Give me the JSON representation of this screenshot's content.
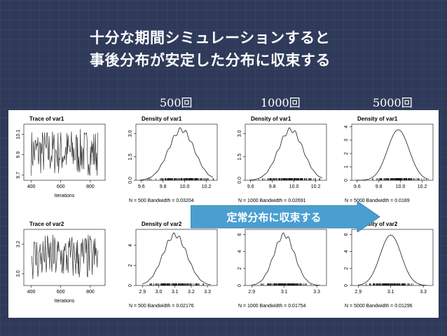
{
  "slide": {
    "title_line1": "十分な期間シミュレーションすると",
    "title_line2": "事後分布が安定した分布に収束する",
    "columns": [
      "500回",
      "1000回",
      "5000回"
    ],
    "arrow_label": "定常分布に収束する",
    "colors": {
      "background": "#2f3a5a",
      "arrow": "#4a9fd0",
      "panel": "#ffffff"
    }
  },
  "chart_data": [
    {
      "type": "line",
      "title": "Trace of var1",
      "xlabel": "Iterations",
      "x_ticks": [
        "400",
        "600",
        "800"
      ],
      "y_ticks": [
        "9.7",
        "9.9",
        "10.1"
      ],
      "xlim": [
        350,
        900
      ],
      "ylim": [
        9.65,
        10.2
      ]
    },
    {
      "type": "line",
      "title": "Density of var1",
      "x_ticks": [
        "9.6",
        "9.8",
        "10.0",
        "10.2"
      ],
      "y_ticks": [
        "0.0",
        "1.5",
        "3.0"
      ],
      "xlim": [
        9.55,
        10.3
      ],
      "ylim": [
        0,
        3.6
      ],
      "mean": 9.97,
      "sd": 0.12,
      "n": 500,
      "caption": "N = 500   Bandwidth = 0.03204"
    },
    {
      "type": "line",
      "title": "Density of var1",
      "x_ticks": [
        "9.6",
        "9.8",
        "10.0",
        "10.2"
      ],
      "y_ticks": [
        "0.0",
        "1.5",
        "3.0"
      ],
      "xlim": [
        9.55,
        10.3
      ],
      "ylim": [
        0,
        3.6
      ],
      "mean": 9.97,
      "sd": 0.115,
      "n": 1000,
      "caption": "N = 1000   Bandwidth = 0.02691"
    },
    {
      "type": "line",
      "title": "Density of var1",
      "x_ticks": [
        "9.6",
        "9.8",
        "10.0",
        "10.2"
      ],
      "y_ticks": [
        "0",
        "1",
        "2",
        "3",
        "4"
      ],
      "xlim": [
        9.55,
        10.3
      ],
      "ylim": [
        0,
        4.2
      ],
      "mean": 9.98,
      "sd": 0.1,
      "n": 5000,
      "caption": "N = 5000   Bandwidth = 0.0189"
    },
    {
      "type": "line",
      "title": "Trace of var2",
      "xlabel": "Iterations",
      "x_ticks": [
        "400",
        "600",
        "800"
      ],
      "y_ticks": [
        "3.0",
        "3.2"
      ],
      "xlim": [
        350,
        900
      ],
      "ylim": [
        2.92,
        3.3
      ]
    },
    {
      "type": "line",
      "title": "Density of var2",
      "x_ticks": [
        "2.9",
        "3.0",
        "3.1",
        "3.2",
        "3.3"
      ],
      "y_ticks": [
        "0",
        "2",
        "4"
      ],
      "xlim": [
        2.86,
        3.36
      ],
      "ylim": [
        0,
        5.6
      ],
      "mean": 3.1,
      "sd": 0.075,
      "n": 500,
      "caption": "N = 500   Bandwidth = 0.02176"
    },
    {
      "type": "line",
      "title": "Density of var2",
      "x_ticks": [
        "2.9",
        "3.1",
        "3.3"
      ],
      "y_ticks": [
        "0",
        "2",
        "4",
        "6"
      ],
      "xlim": [
        2.86,
        3.36
      ],
      "ylim": [
        0,
        6.6
      ],
      "mean": 3.1,
      "sd": 0.065,
      "n": 1000,
      "caption": "N = 1000   Bandwidth = 0.01754"
    },
    {
      "type": "line",
      "title": "Density of var2",
      "x_ticks": [
        "2.9",
        "3.1",
        "3.3"
      ],
      "y_ticks": [
        "0",
        "2",
        "4",
        "6"
      ],
      "xlim": [
        2.86,
        3.36
      ],
      "ylim": [
        0,
        6.6
      ],
      "mean": 3.1,
      "sd": 0.065,
      "n": 5000,
      "caption": "N = 5000   Bandwidth = 0.01296"
    }
  ]
}
